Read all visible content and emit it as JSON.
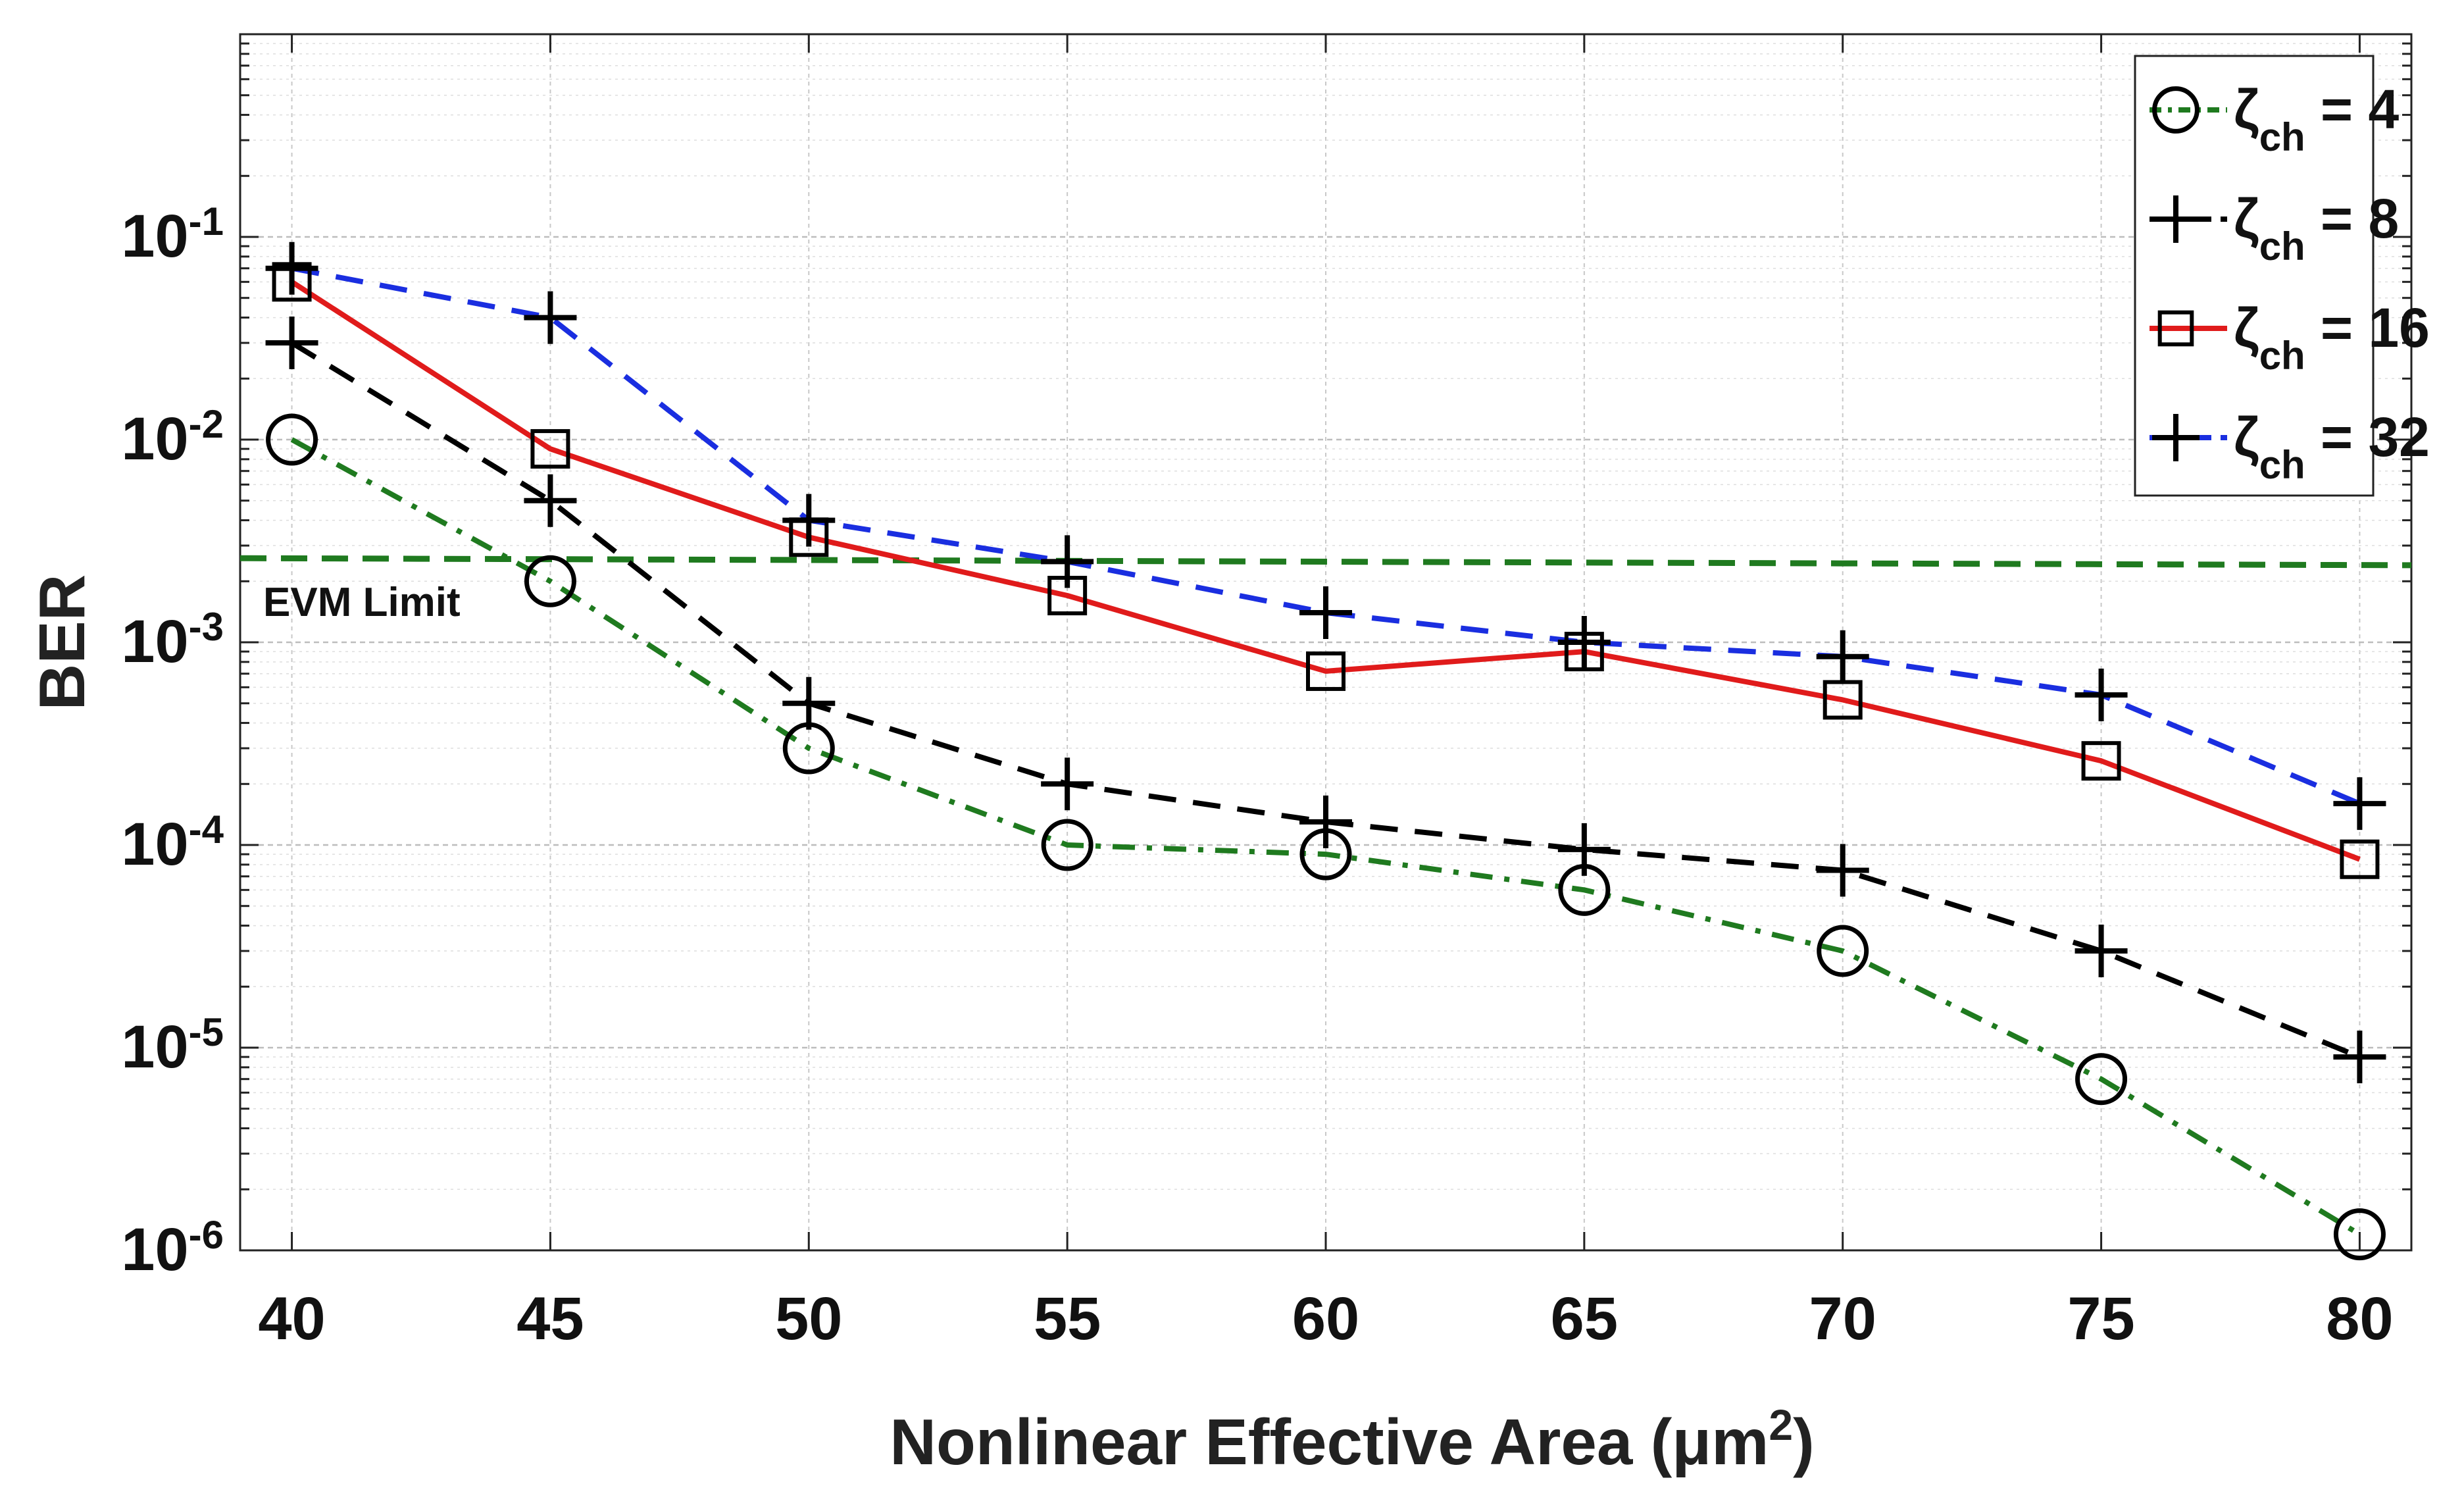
{
  "chart_data": {
    "type": "line",
    "xlabel": "Nonlinear Effective Area  (μm",
    "xlabel_sup": "2",
    "xlabel_end": ")",
    "ylabel": "BER",
    "x": [
      40,
      45,
      50,
      55,
      60,
      65,
      70,
      75,
      80
    ],
    "xlim": [
      39,
      81
    ],
    "ylim": [
      1e-06,
      1.0
    ],
    "yscale": "log",
    "x_ticks": [
      "40",
      "45",
      "50",
      "55",
      "60",
      "65",
      "70",
      "75",
      "80"
    ],
    "y_ticks": [
      {
        "base": "10",
        "exp": "-6",
        "value": 1e-06
      },
      {
        "base": "10",
        "exp": "-5",
        "value": 1e-05
      },
      {
        "base": "10",
        "exp": "-4",
        "value": 0.0001
      },
      {
        "base": "10",
        "exp": "-3",
        "value": 0.001
      },
      {
        "base": "10",
        "exp": "-2",
        "value": 0.01
      },
      {
        "base": "10",
        "exp": "-1",
        "value": 0.1
      }
    ],
    "grid": true,
    "legend_position": "top-right",
    "series": [
      {
        "label_main": "ζ",
        "label_sub": "ch",
        "label_rest": " = 4",
        "color": "#1f7a1f",
        "dash": "dashdot",
        "marker": "circle",
        "values": [
          0.01,
          0.002,
          0.0003,
          0.0001,
          9e-05,
          6e-05,
          3e-05,
          7e-06,
          1.2e-06
        ]
      },
      {
        "label_main": "ζ",
        "label_sub": "ch",
        "label_rest": " = 8",
        "color": "#000000",
        "dash": "dashed",
        "marker": "plus",
        "values": [
          0.03,
          0.005,
          0.0005,
          0.0002,
          0.00013,
          9.5e-05,
          7.5e-05,
          3e-05,
          9e-06
        ]
      },
      {
        "label_main": "ζ",
        "label_sub": "ch",
        "label_rest": " = 16",
        "color": "#e01b1b",
        "dash": "solid",
        "marker": "square",
        "values": [
          0.06,
          0.009,
          0.0033,
          0.0017,
          0.00072,
          0.0009,
          0.00052,
          0.00026,
          8.5e-05
        ]
      },
      {
        "label_main": "ζ",
        "label_sub": "ch",
        "label_rest": " = 32",
        "color": "#1a2ee0",
        "dash": "dashed",
        "marker": "plus",
        "values": [
          0.07,
          0.04,
          0.004,
          0.0025,
          0.0014,
          0.001,
          0.00085,
          0.00055,
          0.00016
        ]
      }
    ],
    "reference_line": {
      "label": "EVM Limit",
      "color": "#1f7a1f",
      "y_start": 0.0026,
      "y_end": 0.0024
    }
  }
}
